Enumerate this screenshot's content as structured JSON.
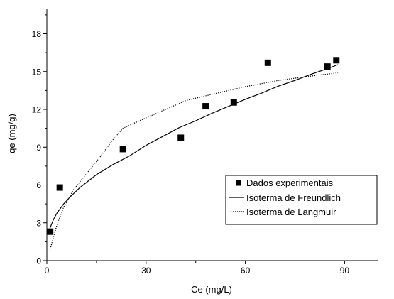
{
  "chart_data": {
    "type": "scatter",
    "title": "",
    "xlabel": "Ce (mg/L)",
    "ylabel": "qe (mg/g)",
    "xlim": [
      0,
      100
    ],
    "ylim": [
      0,
      20
    ],
    "xticks": [
      0,
      30,
      60,
      90
    ],
    "yticks": [
      0,
      3,
      6,
      9,
      12,
      15,
      18
    ],
    "grid": false,
    "legend_position": "right",
    "series": [
      {
        "name": "Dados experimentais",
        "kind": "markers",
        "marker": "square",
        "color": "#000000",
        "x": [
          1.0,
          3.9,
          23.0,
          40.5,
          48.0,
          56.5,
          66.8,
          84.8,
          87.5
        ],
        "y": [
          2.3,
          5.8,
          8.85,
          9.75,
          12.25,
          12.55,
          15.7,
          15.4,
          15.9
        ]
      },
      {
        "name": "Isoterma de Freundlich",
        "kind": "line",
        "line_style": "solid",
        "color": "#000000",
        "x": [
          0.5,
          1,
          2,
          3,
          5,
          7,
          10,
          15,
          20,
          25,
          30,
          35,
          40,
          45,
          50,
          55,
          60,
          65,
          70,
          75,
          80,
          85,
          88
        ],
        "y": [
          2.2,
          2.62,
          3.26,
          3.75,
          4.48,
          5.04,
          5.8,
          6.82,
          7.62,
          8.31,
          9.15,
          9.85,
          10.55,
          11.1,
          11.7,
          12.25,
          12.8,
          13.3,
          13.85,
          14.3,
          14.8,
          15.25,
          15.55
        ]
      },
      {
        "name": "Isoterma de Langmuir",
        "kind": "line",
        "line_style": "dotted",
        "color": "#000000",
        "x": [
          1,
          3,
          5,
          8,
          12,
          16,
          20,
          23,
          28,
          35,
          42,
          50,
          60,
          70,
          80,
          88
        ],
        "y": [
          0.9,
          2.8,
          4.2,
          5.6,
          6.9,
          8.2,
          9.6,
          10.5,
          11.1,
          11.9,
          12.7,
          13.2,
          13.8,
          14.3,
          14.65,
          14.9
        ]
      }
    ]
  }
}
